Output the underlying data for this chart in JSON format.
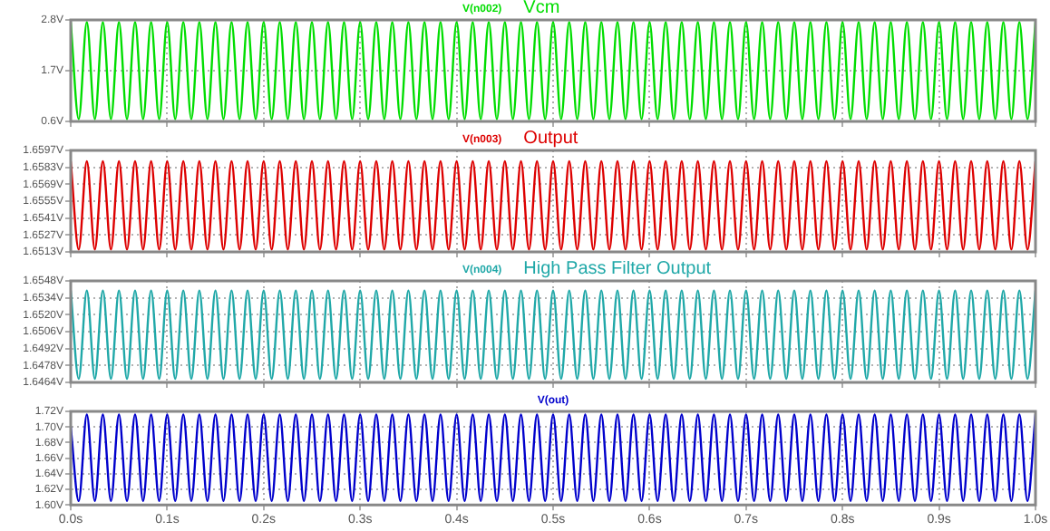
{
  "chart_data": [
    {
      "type": "line",
      "title": "Vcm",
      "xlim": [
        0,
        1
      ],
      "xticks": [
        {
          "value": 0,
          "label": null
        },
        {
          "value": 0.1,
          "label": null
        },
        {
          "value": 0.2,
          "label": null
        },
        {
          "value": 0.3,
          "label": null
        },
        {
          "value": 0.4,
          "label": null
        },
        {
          "value": 0.5,
          "label": null
        },
        {
          "value": 0.6,
          "label": null
        },
        {
          "value": 0.7,
          "label": null
        },
        {
          "value": 0.8,
          "label": null
        },
        {
          "value": 0.9,
          "label": null
        },
        {
          "value": 1,
          "label": null
        }
      ],
      "ylim": [
        0.6,
        2.8
      ],
      "yticks": [
        {
          "value": 0.6,
          "label": "0.6V"
        },
        {
          "value": 1.7,
          "label": "1.7V"
        },
        {
          "value": 2.8,
          "label": "2.8V"
        }
      ],
      "grid": true,
      "tick_labels": "y",
      "x": [
        0,
        0.0083,
        0.0167,
        0.025,
        0.0333,
        0.0417,
        0.05,
        0.0583,
        0.0667,
        0.075,
        0.0833,
        0.0917,
        0.1,
        0.1083,
        0.1167,
        0.125,
        0.1333,
        0.1417,
        0.15,
        0.1583,
        0.1667,
        0.175,
        0.1833,
        0.1917,
        0.2,
        0.2083,
        0.2167,
        0.225,
        0.2333,
        0.2417,
        0.25,
        0.2583,
        0.2667,
        0.275,
        0.2833,
        0.2917,
        0.3,
        0.3083,
        0.3167,
        0.325,
        0.3333,
        0.3417,
        0.35,
        0.3583,
        0.3667,
        0.375,
        0.3833,
        0.3917,
        0.4,
        0.4083,
        0.4167,
        0.425,
        0.4333,
        0.4417,
        0.45,
        0.4583,
        0.4667,
        0.475,
        0.4833,
        0.4917,
        0.5,
        0.5083,
        0.5167,
        0.525,
        0.5333,
        0.5417,
        0.55,
        0.5583,
        0.5667,
        0.575,
        0.5833,
        0.5917,
        0.6,
        0.6083,
        0.6167,
        0.625,
        0.6333,
        0.6417,
        0.65,
        0.6583,
        0.6667,
        0.675,
        0.6833,
        0.6917,
        0.7,
        0.7083,
        0.7167,
        0.725,
        0.7333,
        0.7417,
        0.75,
        0.7583,
        0.7667,
        0.775,
        0.7833,
        0.7917,
        0.8,
        0.8083,
        0.8167,
        0.825,
        0.8333,
        0.8417,
        0.85,
        0.8583,
        0.8667,
        0.875,
        0.8833,
        0.8917,
        0.9,
        0.9083,
        0.9167,
        0.925,
        0.9333,
        0.9417,
        0.95,
        0.9583,
        0.9667,
        0.975,
        0.9833,
        0.9917,
        1
      ],
      "series": [
        {
          "name": "V(n002)",
          "color": "#00dd00",
          "values": [
            2.75,
            0.65,
            2.75,
            0.65,
            2.75,
            0.65,
            2.75,
            0.65,
            2.75,
            0.65,
            2.75,
            0.65,
            2.75,
            0.65,
            2.75,
            0.65,
            2.75,
            0.65,
            2.75,
            0.65,
            2.75,
            0.65,
            2.75,
            0.65,
            2.75,
            0.65,
            2.75,
            0.65,
            2.75,
            0.65,
            2.75,
            0.65,
            2.75,
            0.65,
            2.75,
            0.65,
            2.75,
            0.65,
            2.75,
            0.65,
            2.75,
            0.65,
            2.75,
            0.65,
            2.75,
            0.65,
            2.75,
            0.65,
            2.75,
            0.65,
            2.75,
            0.65,
            2.75,
            0.65,
            2.75,
            0.65,
            2.75,
            0.65,
            2.75,
            0.65,
            2.75,
            0.65,
            2.75,
            0.65,
            2.75,
            0.65,
            2.75,
            0.65,
            2.75,
            0.65,
            2.75,
            0.65,
            2.75,
            0.65,
            2.75,
            0.65,
            2.75,
            0.65,
            2.75,
            0.65,
            2.75,
            0.65,
            2.75,
            0.65,
            2.75,
            0.65,
            2.75,
            0.65,
            2.75,
            0.65,
            2.75,
            0.65,
            2.75,
            0.65,
            2.75,
            0.65,
            2.75,
            0.65,
            2.75,
            0.65,
            2.75,
            0.65,
            2.75,
            0.65,
            2.75,
            0.65,
            2.75,
            0.65,
            2.75,
            0.65,
            2.75,
            0.65,
            2.75,
            0.65,
            2.75,
            0.65,
            2.75,
            0.65,
            2.75,
            0.65,
            2.75
          ]
        }
      ]
    },
    {
      "type": "line",
      "title": "Output",
      "xlim": [
        0,
        1
      ],
      "xticks": [
        {
          "value": 0,
          "label": null
        },
        {
          "value": 0.1,
          "label": null
        },
        {
          "value": 0.2,
          "label": null
        },
        {
          "value": 0.3,
          "label": null
        },
        {
          "value": 0.4,
          "label": null
        },
        {
          "value": 0.5,
          "label": null
        },
        {
          "value": 0.6,
          "label": null
        },
        {
          "value": 0.7,
          "label": null
        },
        {
          "value": 0.8,
          "label": null
        },
        {
          "value": 0.9,
          "label": null
        },
        {
          "value": 1,
          "label": null
        }
      ],
      "ylim": [
        1.6513,
        1.6597
      ],
      "yticks": [
        {
          "value": 1.6513,
          "label": "1.6513V"
        },
        {
          "value": 1.6527,
          "label": "1.6527V"
        },
        {
          "value": 1.6541,
          "label": "1.6541V"
        },
        {
          "value": 1.6555,
          "label": "1.6555V"
        },
        {
          "value": 1.6569,
          "label": "1.6569V"
        },
        {
          "value": 1.6583,
          "label": "1.6583V"
        },
        {
          "value": 1.6597,
          "label": "1.6597V"
        }
      ],
      "grid": true,
      "tick_labels": "y",
      "x": [
        0,
        0.0083,
        0.0167,
        0.025,
        0.0333,
        0.0417,
        0.05,
        0.0583,
        0.0667,
        0.075,
        0.0833,
        0.0917,
        0.1,
        0.1083,
        0.1167,
        0.125,
        0.1333,
        0.1417,
        0.15,
        0.1583,
        0.1667,
        0.175,
        0.1833,
        0.1917,
        0.2,
        0.2083,
        0.2167,
        0.225,
        0.2333,
        0.2417,
        0.25,
        0.2583,
        0.2667,
        0.275,
        0.2833,
        0.2917,
        0.3,
        0.3083,
        0.3167,
        0.325,
        0.3333,
        0.3417,
        0.35,
        0.3583,
        0.3667,
        0.375,
        0.3833,
        0.3917,
        0.4,
        0.4083,
        0.4167,
        0.425,
        0.4333,
        0.4417,
        0.45,
        0.4583,
        0.4667,
        0.475,
        0.4833,
        0.4917,
        0.5,
        0.5083,
        0.5167,
        0.525,
        0.5333,
        0.5417,
        0.55,
        0.5583,
        0.5667,
        0.575,
        0.5833,
        0.5917,
        0.6,
        0.6083,
        0.6167,
        0.625,
        0.6333,
        0.6417,
        0.65,
        0.6583,
        0.6667,
        0.675,
        0.6833,
        0.6917,
        0.7,
        0.7083,
        0.7167,
        0.725,
        0.7333,
        0.7417,
        0.75,
        0.7583,
        0.7667,
        0.775,
        0.7833,
        0.7917,
        0.8,
        0.8083,
        0.8167,
        0.825,
        0.8333,
        0.8417,
        0.85,
        0.8583,
        0.8667,
        0.875,
        0.8833,
        0.8917,
        0.9,
        0.9083,
        0.9167,
        0.925,
        0.9333,
        0.9417,
        0.95,
        0.9583,
        0.9667,
        0.975,
        0.9833,
        0.9917,
        1
      ],
      "series": [
        {
          "name": "V(n003)",
          "color": "#dd0000",
          "values": [
            1.6588,
            1.6515,
            1.6588,
            1.6515,
            1.6588,
            1.6515,
            1.6588,
            1.6515,
            1.6588,
            1.6515,
            1.6588,
            1.6515,
            1.6588,
            1.6515,
            1.6588,
            1.6515,
            1.6588,
            1.6515,
            1.6588,
            1.6515,
            1.6588,
            1.6515,
            1.6588,
            1.6515,
            1.6588,
            1.6515,
            1.6588,
            1.6515,
            1.6588,
            1.6515,
            1.6588,
            1.6515,
            1.6588,
            1.6515,
            1.6588,
            1.6515,
            1.6588,
            1.6515,
            1.6588,
            1.6515,
            1.6588,
            1.6515,
            1.6588,
            1.6515,
            1.6588,
            1.6515,
            1.6588,
            1.6515,
            1.6588,
            1.6515,
            1.6588,
            1.6515,
            1.6588,
            1.6515,
            1.6588,
            1.6515,
            1.6588,
            1.6515,
            1.6588,
            1.6515,
            1.6588,
            1.6515,
            1.6588,
            1.6515,
            1.6588,
            1.6515,
            1.6588,
            1.6515,
            1.6588,
            1.6515,
            1.6588,
            1.6515,
            1.6588,
            1.6515,
            1.6588,
            1.6515,
            1.6588,
            1.6515,
            1.6588,
            1.6515,
            1.6588,
            1.6515,
            1.6588,
            1.6515,
            1.6588,
            1.6515,
            1.6588,
            1.6515,
            1.6588,
            1.6515,
            1.6588,
            1.6515,
            1.6588,
            1.6515,
            1.6588,
            1.6515,
            1.6588,
            1.6515,
            1.6588,
            1.6515,
            1.6588,
            1.6515,
            1.6588,
            1.6515,
            1.6588,
            1.6515,
            1.6588,
            1.6515,
            1.6588,
            1.6515,
            1.6588,
            1.6515,
            1.6588,
            1.6515,
            1.6588,
            1.6515,
            1.6588,
            1.6515,
            1.6588,
            1.6515,
            1.6588
          ]
        }
      ]
    },
    {
      "type": "line",
      "title": "High Pass Filter Output",
      "xlim": [
        0,
        1
      ],
      "xticks": [
        {
          "value": 0,
          "label": null
        },
        {
          "value": 0.1,
          "label": null
        },
        {
          "value": 0.2,
          "label": null
        },
        {
          "value": 0.3,
          "label": null
        },
        {
          "value": 0.4,
          "label": null
        },
        {
          "value": 0.5,
          "label": null
        },
        {
          "value": 0.6,
          "label": null
        },
        {
          "value": 0.7,
          "label": null
        },
        {
          "value": 0.8,
          "label": null
        },
        {
          "value": 0.9,
          "label": null
        },
        {
          "value": 1,
          "label": null
        }
      ],
      "ylim": [
        1.6464,
        1.6548
      ],
      "yticks": [
        {
          "value": 1.6464,
          "label": "1.6464V"
        },
        {
          "value": 1.6478,
          "label": "1.6478V"
        },
        {
          "value": 1.6492,
          "label": "1.6492V"
        },
        {
          "value": 1.6506,
          "label": "1.6506V"
        },
        {
          "value": 1.652,
          "label": "1.6520V"
        },
        {
          "value": 1.6534,
          "label": "1.6534V"
        },
        {
          "value": 1.6548,
          "label": "1.6548V"
        }
      ],
      "grid": true,
      "tick_labels": "y",
      "x": [
        0,
        0.0083,
        0.0167,
        0.025,
        0.0333,
        0.0417,
        0.05,
        0.0583,
        0.0667,
        0.075,
        0.0833,
        0.0917,
        0.1,
        0.1083,
        0.1167,
        0.125,
        0.1333,
        0.1417,
        0.15,
        0.1583,
        0.1667,
        0.175,
        0.1833,
        0.1917,
        0.2,
        0.2083,
        0.2167,
        0.225,
        0.2333,
        0.2417,
        0.25,
        0.2583,
        0.2667,
        0.275,
        0.2833,
        0.2917,
        0.3,
        0.3083,
        0.3167,
        0.325,
        0.3333,
        0.3417,
        0.35,
        0.3583,
        0.3667,
        0.375,
        0.3833,
        0.3917,
        0.4,
        0.4083,
        0.4167,
        0.425,
        0.4333,
        0.4417,
        0.45,
        0.4583,
        0.4667,
        0.475,
        0.4833,
        0.4917,
        0.5,
        0.5083,
        0.5167,
        0.525,
        0.5333,
        0.5417,
        0.55,
        0.5583,
        0.5667,
        0.575,
        0.5833,
        0.5917,
        0.6,
        0.6083,
        0.6167,
        0.625,
        0.6333,
        0.6417,
        0.65,
        0.6583,
        0.6667,
        0.675,
        0.6833,
        0.6917,
        0.7,
        0.7083,
        0.7167,
        0.725,
        0.7333,
        0.7417,
        0.75,
        0.7583,
        0.7667,
        0.775,
        0.7833,
        0.7917,
        0.8,
        0.8083,
        0.8167,
        0.825,
        0.8333,
        0.8417,
        0.85,
        0.8583,
        0.8667,
        0.875,
        0.8833,
        0.8917,
        0.9,
        0.9083,
        0.9167,
        0.925,
        0.9333,
        0.9417,
        0.95,
        0.9583,
        0.9667,
        0.975,
        0.9833,
        0.9917,
        1
      ],
      "series": [
        {
          "name": "V(n004)",
          "color": "#20a8a8",
          "values": [
            1.654,
            1.6467,
            1.654,
            1.6467,
            1.654,
            1.6467,
            1.654,
            1.6467,
            1.654,
            1.6467,
            1.654,
            1.6467,
            1.654,
            1.6467,
            1.654,
            1.6467,
            1.654,
            1.6467,
            1.654,
            1.6467,
            1.654,
            1.6467,
            1.654,
            1.6467,
            1.654,
            1.6467,
            1.654,
            1.6467,
            1.654,
            1.6467,
            1.654,
            1.6467,
            1.654,
            1.6467,
            1.654,
            1.6467,
            1.654,
            1.6467,
            1.654,
            1.6467,
            1.654,
            1.6467,
            1.654,
            1.6467,
            1.654,
            1.6467,
            1.654,
            1.6467,
            1.654,
            1.6467,
            1.654,
            1.6467,
            1.654,
            1.6467,
            1.654,
            1.6467,
            1.654,
            1.6467,
            1.654,
            1.6467,
            1.654,
            1.6467,
            1.654,
            1.6467,
            1.654,
            1.6467,
            1.654,
            1.6467,
            1.654,
            1.6467,
            1.654,
            1.6467,
            1.654,
            1.6467,
            1.654,
            1.6467,
            1.654,
            1.6467,
            1.654,
            1.6467,
            1.654,
            1.6467,
            1.654,
            1.6467,
            1.654,
            1.6467,
            1.654,
            1.6467,
            1.654,
            1.6467,
            1.654,
            1.6467,
            1.654,
            1.6467,
            1.654,
            1.6467,
            1.654,
            1.6467,
            1.654,
            1.6467,
            1.654,
            1.6467,
            1.654,
            1.6467,
            1.654,
            1.6467,
            1.654,
            1.6467,
            1.654,
            1.6467,
            1.654,
            1.6467,
            1.654,
            1.6467,
            1.654,
            1.6467,
            1.654,
            1.6467,
            1.654,
            1.6467,
            1.654
          ]
        }
      ]
    },
    {
      "type": "line",
      "xlim": [
        0,
        1
      ],
      "xticks": [
        {
          "value": 0,
          "label": "0.0s"
        },
        {
          "value": 0.1,
          "label": "0.1s"
        },
        {
          "value": 0.2,
          "label": "0.2s"
        },
        {
          "value": 0.3,
          "label": "0.3s"
        },
        {
          "value": 0.4,
          "label": "0.4s"
        },
        {
          "value": 0.5,
          "label": "0.5s"
        },
        {
          "value": 0.6,
          "label": "0.6s"
        },
        {
          "value": 0.7,
          "label": "0.7s"
        },
        {
          "value": 0.8,
          "label": "0.8s"
        },
        {
          "value": 0.9,
          "label": "0.9s"
        },
        {
          "value": 1,
          "label": "1.0s"
        }
      ],
      "ylim": [
        1.6,
        1.72
      ],
      "yticks": [
        {
          "value": 1.6,
          "label": "1.60V"
        },
        {
          "value": 1.62,
          "label": "1.62V"
        },
        {
          "value": 1.64,
          "label": "1.64V"
        },
        {
          "value": 1.66,
          "label": "1.66V"
        },
        {
          "value": 1.68,
          "label": "1.68V"
        },
        {
          "value": 1.7,
          "label": "1.70V"
        },
        {
          "value": 1.72,
          "label": "1.72V"
        }
      ],
      "grid": true,
      "x": [
        0,
        0.0083,
        0.0167,
        0.025,
        0.0333,
        0.0417,
        0.05,
        0.0583,
        0.0667,
        0.075,
        0.0833,
        0.0917,
        0.1,
        0.1083,
        0.1167,
        0.125,
        0.1333,
        0.1417,
        0.15,
        0.1583,
        0.1667,
        0.175,
        0.1833,
        0.1917,
        0.2,
        0.2083,
        0.2167,
        0.225,
        0.2333,
        0.2417,
        0.25,
        0.2583,
        0.2667,
        0.275,
        0.2833,
        0.2917,
        0.3,
        0.3083,
        0.3167,
        0.325,
        0.3333,
        0.3417,
        0.35,
        0.3583,
        0.3667,
        0.375,
        0.3833,
        0.3917,
        0.4,
        0.4083,
        0.4167,
        0.425,
        0.4333,
        0.4417,
        0.45,
        0.4583,
        0.4667,
        0.475,
        0.4833,
        0.4917,
        0.5,
        0.5083,
        0.5167,
        0.525,
        0.5333,
        0.5417,
        0.55,
        0.5583,
        0.5667,
        0.575,
        0.5833,
        0.5917,
        0.6,
        0.6083,
        0.6167,
        0.625,
        0.6333,
        0.6417,
        0.65,
        0.6583,
        0.6667,
        0.675,
        0.6833,
        0.6917,
        0.7,
        0.7083,
        0.7167,
        0.725,
        0.7333,
        0.7417,
        0.75,
        0.7583,
        0.7667,
        0.775,
        0.7833,
        0.7917,
        0.8,
        0.8083,
        0.8167,
        0.825,
        0.8333,
        0.8417,
        0.85,
        0.8583,
        0.8667,
        0.875,
        0.8833,
        0.8917,
        0.9,
        0.9083,
        0.9167,
        0.925,
        0.9333,
        0.9417,
        0.95,
        0.9583,
        0.9667,
        0.975,
        0.9833,
        0.9917,
        1
      ],
      "series": [
        {
          "name": "V(out)",
          "color": "#0000cc",
          "values": [
            1.7,
            1.605,
            1.716,
            1.605,
            1.716,
            1.605,
            1.716,
            1.605,
            1.716,
            1.605,
            1.716,
            1.605,
            1.716,
            1.605,
            1.716,
            1.605,
            1.716,
            1.605,
            1.716,
            1.605,
            1.716,
            1.605,
            1.716,
            1.605,
            1.716,
            1.605,
            1.716,
            1.605,
            1.716,
            1.605,
            1.716,
            1.605,
            1.716,
            1.605,
            1.716,
            1.605,
            1.716,
            1.605,
            1.716,
            1.605,
            1.716,
            1.605,
            1.716,
            1.605,
            1.716,
            1.605,
            1.716,
            1.605,
            1.716,
            1.605,
            1.716,
            1.605,
            1.716,
            1.605,
            1.716,
            1.605,
            1.716,
            1.605,
            1.716,
            1.605,
            1.716,
            1.605,
            1.716,
            1.605,
            1.716,
            1.605,
            1.716,
            1.605,
            1.716,
            1.605,
            1.716,
            1.605,
            1.716,
            1.605,
            1.716,
            1.605,
            1.716,
            1.605,
            1.716,
            1.605,
            1.716,
            1.605,
            1.716,
            1.605,
            1.716,
            1.605,
            1.716,
            1.605,
            1.716,
            1.605,
            1.716,
            1.605,
            1.716,
            1.605,
            1.716,
            1.605,
            1.716,
            1.605,
            1.716,
            1.605,
            1.716,
            1.605,
            1.716,
            1.605,
            1.716,
            1.605,
            1.716,
            1.605,
            1.716,
            1.605,
            1.716,
            1.605,
            1.716,
            1.605,
            1.716,
            1.605,
            1.716,
            1.605,
            1.716,
            1.605,
            1.716
          ]
        }
      ]
    }
  ]
}
